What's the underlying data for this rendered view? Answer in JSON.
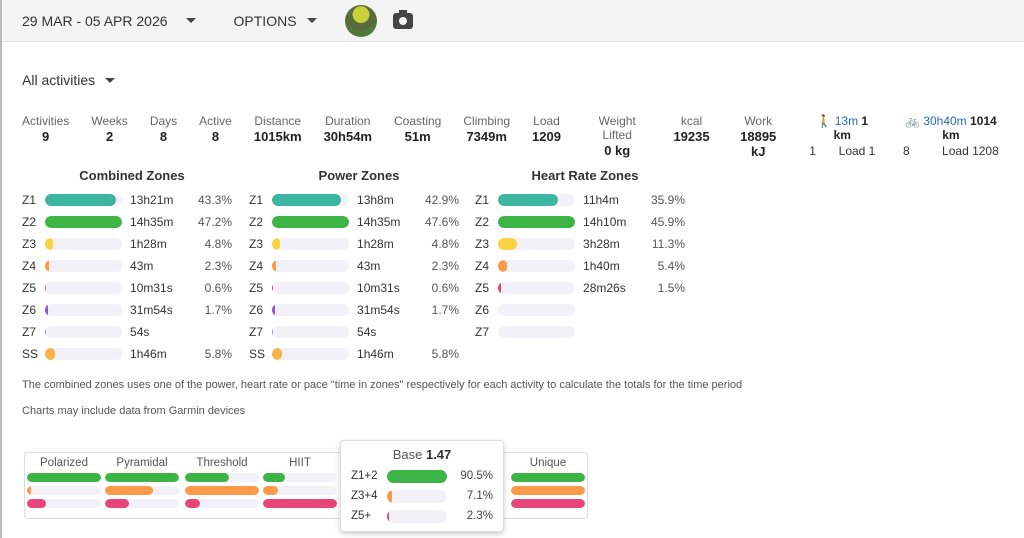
{
  "header": {
    "date_range": "29 MAR - 05 APR 2026",
    "options": "OPTIONS"
  },
  "filter": "All activities",
  "stats": [
    {
      "label": "Activities",
      "value": "9"
    },
    {
      "label": "Weeks",
      "value": "2"
    },
    {
      "label": "Days",
      "value": "8"
    },
    {
      "label": "Active",
      "value": "8"
    },
    {
      "label": "Distance",
      "value": "1015km"
    },
    {
      "label": "Duration",
      "value": "30h54m"
    },
    {
      "label": "Coasting",
      "value": "51m"
    },
    {
      "label": "Climbing",
      "value": "7349m"
    },
    {
      "label": "Load",
      "value": "1209"
    },
    {
      "label": "Weight Lifted",
      "value": "0 kg"
    },
    {
      "label": "kcal",
      "value": "19235"
    },
    {
      "label": "Work",
      "value": "18895 kJ"
    }
  ],
  "sports": [
    {
      "icon": "walk-icon",
      "time": "13m",
      "distance": "1 km",
      "count": "1",
      "load": "Load 1"
    },
    {
      "icon": "bike-icon",
      "time": "30h40m",
      "distance": "1014 km",
      "count": "8",
      "load": "Load 1208"
    }
  ],
  "colors": {
    "Z1": "#3db5a0",
    "Z2": "#3db446",
    "Z3": "#f9d440",
    "Z4": "#fb9a48",
    "Z5": "#e8457a",
    "Z6": "#8b55dd",
    "Z7": "#9999cc",
    "SS": "#fbb246"
  },
  "zone_panels": [
    {
      "title": "Combined Zones",
      "rows": [
        {
          "zone": "Z1",
          "time": "13h21m",
          "pct": "43.3%",
          "fill": 0.917
        },
        {
          "zone": "Z2",
          "time": "14h35m",
          "pct": "47.2%",
          "fill": 1
        },
        {
          "zone": "Z3",
          "time": "1h28m",
          "pct": "4.8%",
          "fill": 0.1
        },
        {
          "zone": "Z4",
          "time": "43m",
          "pct": "2.3%",
          "fill": 0.05
        },
        {
          "zone": "Z5",
          "time": "10m31s",
          "pct": "0.6%",
          "fill": 0.013
        },
        {
          "zone": "Z6",
          "time": "31m54s",
          "pct": "1.7%",
          "fill": 0.036
        },
        {
          "zone": "Z7",
          "time": "54s",
          "pct": "",
          "fill": 0.01
        },
        {
          "zone": "SS",
          "time": "1h46m",
          "pct": "5.8%",
          "fill": 0.123
        }
      ]
    },
    {
      "title": "Power Zones",
      "rows": [
        {
          "zone": "Z1",
          "time": "13h8m",
          "pct": "42.9%",
          "fill": 0.901
        },
        {
          "zone": "Z2",
          "time": "14h35m",
          "pct": "47.6%",
          "fill": 1
        },
        {
          "zone": "Z3",
          "time": "1h28m",
          "pct": "4.8%",
          "fill": 0.1
        },
        {
          "zone": "Z4",
          "time": "43m",
          "pct": "2.3%",
          "fill": 0.05
        },
        {
          "zone": "Z5",
          "time": "10m31s",
          "pct": "0.6%",
          "fill": 0.013
        },
        {
          "zone": "Z6",
          "time": "31m54s",
          "pct": "1.7%",
          "fill": 0.036
        },
        {
          "zone": "Z7",
          "time": "54s",
          "pct": "",
          "fill": 0.01
        },
        {
          "zone": "SS",
          "time": "1h46m",
          "pct": "5.8%",
          "fill": 0.123
        }
      ]
    },
    {
      "title": "Heart Rate Zones",
      "rows": [
        {
          "zone": "Z1",
          "time": "11h4m",
          "pct": "35.9%",
          "fill": 0.782
        },
        {
          "zone": "Z2",
          "time": "14h10m",
          "pct": "45.9%",
          "fill": 1
        },
        {
          "zone": "Z3",
          "time": "3h28m",
          "pct": "11.3%",
          "fill": 0.246
        },
        {
          "zone": "Z4",
          "time": "1h40m",
          "pct": "5.4%",
          "fill": 0.118
        },
        {
          "zone": "Z5",
          "time": "28m26s",
          "pct": "1.5%",
          "fill": 0.033
        },
        {
          "zone": "Z6",
          "time": "",
          "pct": "",
          "fill": 0
        },
        {
          "zone": "Z7",
          "time": "",
          "pct": "",
          "fill": 0
        }
      ]
    }
  ],
  "notes": [
    "The combined zones uses one of the power, heart rate or pace \"time in zones\" respectively for each activity to calculate the totals for the time period",
    "Charts may include data from Garmin devices"
  ],
  "distribution": [
    {
      "label": "Polarized",
      "fills": [
        1,
        0.05,
        0.25
      ]
    },
    {
      "label": "Pyramidal",
      "fills": [
        1,
        0.65,
        0.33
      ]
    },
    {
      "label": "Threshold",
      "fills": [
        0.6,
        1,
        0.2
      ]
    },
    {
      "label": "HIIT",
      "fills": [
        0.3,
        0.2,
        1
      ]
    },
    {
      "label": "Unique",
      "fills": [
        1,
        1,
        1
      ]
    }
  ],
  "distribution_colors": [
    "#3db446",
    "#fb9a48",
    "#e8457a"
  ],
  "tooltip": {
    "title": "Base",
    "value": "1.47",
    "rows": [
      {
        "label": "Z1+2",
        "pct": "90.5%",
        "fill": 1,
        "color": "#3db446"
      },
      {
        "label": "Z3+4",
        "pct": "7.1%",
        "fill": 0.08,
        "color": "#fb9a48"
      },
      {
        "label": "Z5+",
        "pct": "2.3%",
        "fill": 0.025,
        "color": "#e8457a"
      }
    ]
  }
}
